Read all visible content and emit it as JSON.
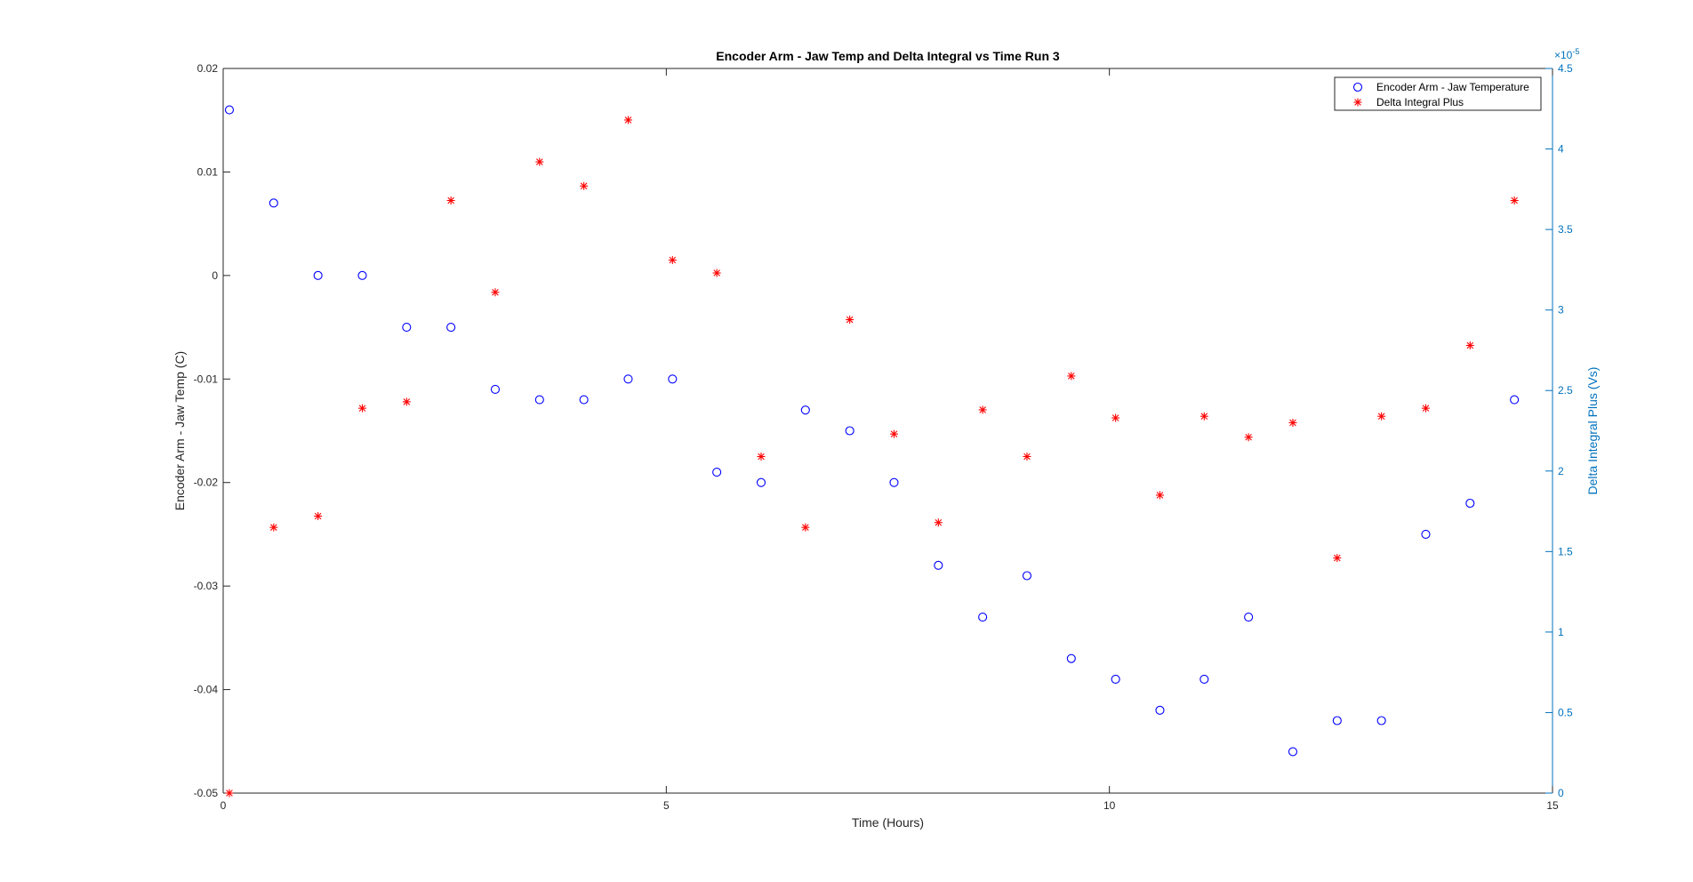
{
  "chart_data": {
    "type": "scatter",
    "title": "Encoder Arm - Jaw Temp and Delta Integral vs Time Run 3",
    "xlabel": "Time (Hours)",
    "ylabel_left": "Encoder Arm - Jaw Temp (C)",
    "ylabel_right": "Delta Integral Plus (Vs)",
    "right_axis_exponent": "×10",
    "right_axis_exponent_power": "-5",
    "xlim": [
      0,
      15
    ],
    "ylim_left": [
      -0.05,
      0.02
    ],
    "ylim_right": [
      0,
      4.5
    ],
    "right_axis_scale_factor": 1e-05,
    "x_ticks": [
      0,
      5,
      10,
      15
    ],
    "x_tick_labels": [
      "0",
      "5",
      "10",
      "15"
    ],
    "y_left_ticks": [
      0.02,
      0.01,
      0,
      -0.01,
      -0.02,
      -0.03,
      -0.04,
      -0.05
    ],
    "y_left_tick_labels": [
      "0.02",
      "0.01",
      "0",
      "-0.01",
      "-0.02",
      "-0.03",
      "-0.04",
      "-0.05"
    ],
    "y_right_ticks": [
      4.5,
      4,
      3.5,
      3,
      2.5,
      2,
      1.5,
      1,
      0.5,
      0
    ],
    "y_right_tick_labels": [
      "4.5",
      "4",
      "3.5",
      "3",
      "2.5",
      "2",
      "1.5",
      "1",
      "0.5",
      "0"
    ],
    "grid": false,
    "legend_position": "top-right",
    "colors": {
      "series_temp": "#0000ff",
      "series_delta": "#ff0000",
      "right_axis": "#0072bd",
      "axes": "#262626"
    },
    "series": [
      {
        "name": "Encoder Arm - Jaw Temperature",
        "axis": "left",
        "marker": "circle",
        "x": [
          0.07,
          0.57,
          1.07,
          1.57,
          2.07,
          2.57,
          3.07,
          3.57,
          4.07,
          4.57,
          5.07,
          5.57,
          6.07,
          6.57,
          7.07,
          7.57,
          8.07,
          8.57,
          9.07,
          9.57,
          10.07,
          10.57,
          11.07,
          11.57,
          12.07,
          12.57,
          13.07,
          13.57,
          14.07,
          14.57
        ],
        "y": [
          0.016,
          0.007,
          0,
          0,
          -0.005,
          -0.005,
          -0.011,
          -0.012,
          -0.012,
          -0.01,
          -0.01,
          -0.019,
          -0.02,
          -0.013,
          -0.015,
          -0.02,
          -0.028,
          -0.033,
          -0.029,
          -0.037,
          -0.039,
          -0.042,
          -0.039,
          -0.033,
          -0.046,
          -0.043,
          -0.043,
          -0.025,
          -0.022,
          -0.012
        ]
      },
      {
        "name": "Delta Integral Plus",
        "axis": "right",
        "marker": "star",
        "x": [
          0.07,
          0.57,
          1.07,
          1.57,
          2.07,
          2.57,
          3.07,
          3.57,
          4.07,
          4.57,
          5.07,
          5.57,
          6.07,
          6.57,
          7.07,
          7.57,
          8.07,
          8.57,
          9.07,
          9.57,
          10.07,
          10.57,
          11.07,
          11.57,
          12.07,
          12.57,
          13.07,
          13.57,
          14.07,
          14.57
        ],
        "y": [
          0,
          1.65,
          1.72,
          2.39,
          2.43,
          3.68,
          3.11,
          3.92,
          3.77,
          4.18,
          3.31,
          3.23,
          2.09,
          1.65,
          2.94,
          2.23,
          1.68,
          2.38,
          2.09,
          2.59,
          2.33,
          1.85,
          2.34,
          2.21,
          2.3,
          1.46,
          2.34,
          2.39,
          2.78,
          3.68
        ]
      }
    ]
  }
}
